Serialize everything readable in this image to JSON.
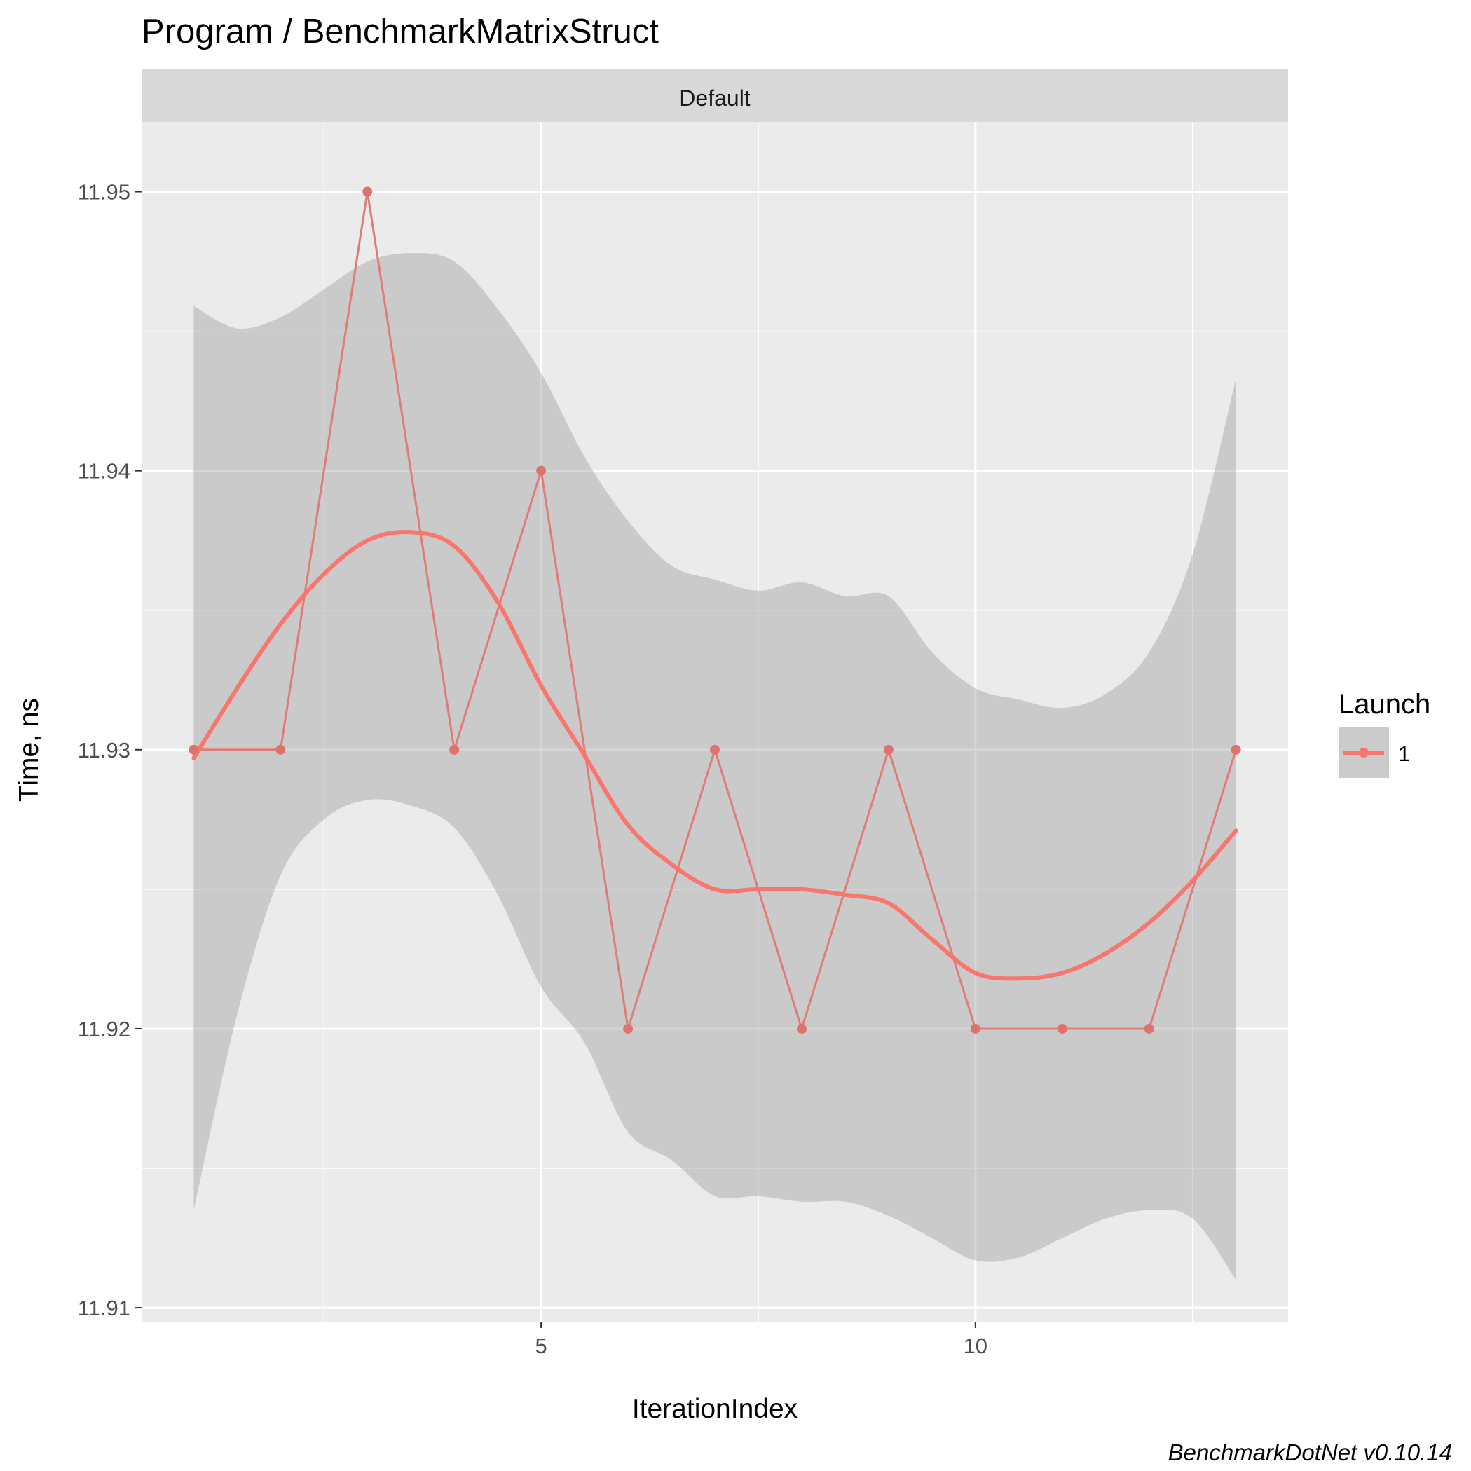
{
  "chart_data": {
    "type": "line",
    "title": "Program / BenchmarkMatrixStruct",
    "facet_label": "Default",
    "xlabel": "IterationIndex",
    "ylabel": "Time, ns",
    "xlim": [
      0.4,
      13.6
    ],
    "ylim": [
      11.9095,
      11.9525
    ],
    "x_ticks": [
      5,
      10
    ],
    "x_tick_labels": [
      "5",
      "10"
    ],
    "x_minor_ticks": [
      2.5,
      7.5,
      12.5
    ],
    "y_ticks": [
      11.91,
      11.92,
      11.93,
      11.94,
      11.95
    ],
    "y_tick_labels": [
      "11.91",
      "11.92",
      "11.93",
      "11.94",
      "11.95"
    ],
    "y_minor_ticks": [
      11.915,
      11.925,
      11.935,
      11.945
    ],
    "grid": true,
    "series": [
      {
        "name": "1",
        "x": [
          1,
          2,
          3,
          4,
          5,
          6,
          7,
          8,
          9,
          10,
          11,
          12,
          13
        ],
        "values": [
          11.93,
          11.93,
          11.95,
          11.93,
          11.94,
          11.92,
          11.93,
          11.92,
          11.93,
          11.92,
          11.92,
          11.92,
          11.93
        ],
        "color": "#f8766d"
      }
    ],
    "smooth": {
      "x": [
        1,
        1.5,
        2,
        2.5,
        3,
        3.5,
        4,
        4.5,
        5,
        5.5,
        6,
        6.5,
        7,
        7.5,
        8,
        8.5,
        9,
        9.5,
        10,
        10.5,
        11,
        11.5,
        12,
        12.5,
        13
      ],
      "y": [
        11.9297,
        11.9322,
        11.9345,
        11.9363,
        11.9375,
        11.9378,
        11.9373,
        11.9353,
        11.9323,
        11.9298,
        11.9273,
        11.9259,
        11.925,
        11.925,
        11.925,
        11.9248,
        11.9245,
        11.9232,
        11.922,
        11.9218,
        11.922,
        11.9227,
        11.9238,
        11.9253,
        11.9271
      ],
      "upper": [
        11.9459,
        11.9451,
        11.9455,
        11.9465,
        11.9475,
        11.9478,
        11.9475,
        11.9458,
        11.9435,
        11.9405,
        11.9382,
        11.9366,
        11.9361,
        11.9357,
        11.936,
        11.9355,
        11.9355,
        11.9335,
        11.9322,
        11.9318,
        11.9315,
        11.932,
        11.9335,
        11.937,
        11.9433
      ],
      "lower": [
        11.9135,
        11.9205,
        11.9255,
        11.9275,
        11.9282,
        11.928,
        11.9272,
        11.9248,
        11.9215,
        11.9195,
        11.9163,
        11.9153,
        11.914,
        11.914,
        11.9138,
        11.9138,
        11.9133,
        11.9125,
        11.9117,
        11.9118,
        11.9125,
        11.9132,
        11.9135,
        11.9132,
        11.911
      ],
      "band_color": "#999999",
      "line_color": "#f8766d"
    },
    "legend": {
      "title": "Launch",
      "entries": [
        "1"
      ],
      "placement": "right"
    },
    "caption": "BenchmarkDotNet v0.10.14",
    "colors": {
      "panel_bg": "#ebebeb",
      "strip_bg": "#d9d9d9",
      "grid": "#ffffff",
      "point": "#e0726d",
      "raw_line": "#e07c78"
    }
  }
}
